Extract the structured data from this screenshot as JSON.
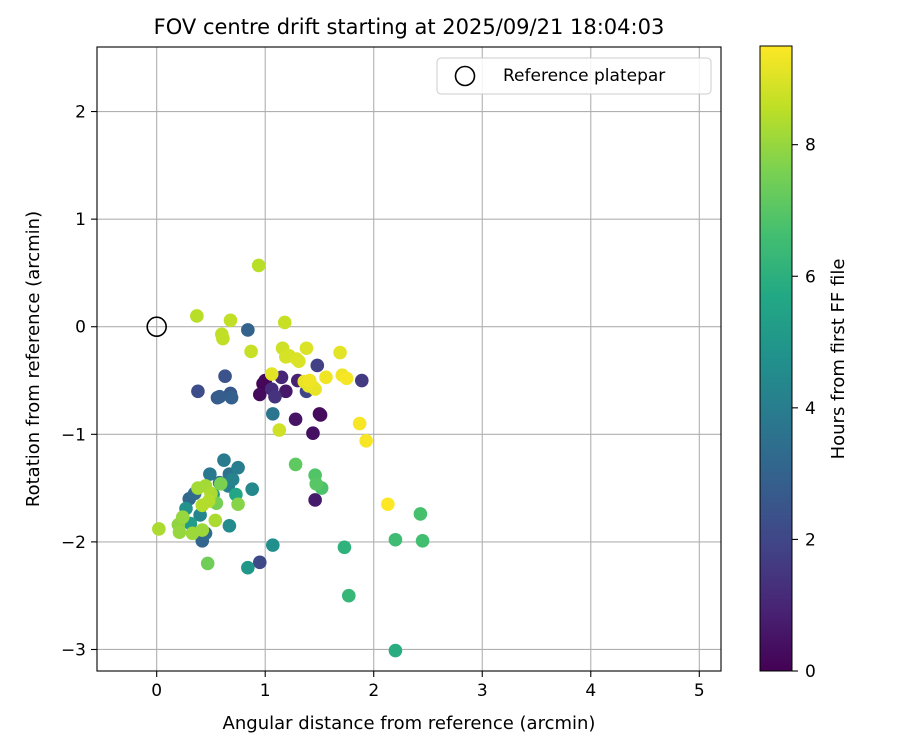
{
  "chart_data": {
    "type": "scatter",
    "title": "FOV centre drift starting at 2025/09/21 18:04:03",
    "xlabel": "Angular distance from reference (arcmin)",
    "ylabel": "Rotation from reference (arcmin)",
    "xlim": [
      -0.55,
      5.2
    ],
    "ylim": [
      -3.2,
      2.6
    ],
    "xticks": [
      0,
      1,
      2,
      3,
      4,
      5
    ],
    "yticks": [
      -3,
      -2,
      -1,
      0,
      1,
      2
    ],
    "grid": true,
    "legend": {
      "position": "top-right",
      "entries": [
        "Reference platepar"
      ]
    },
    "reference_point": {
      "name": "Reference platepar",
      "x": 0,
      "y": 0
    },
    "colorbar": {
      "label": "Hours from first FF file",
      "min": 0,
      "max": 9.5,
      "ticks": [
        0,
        2,
        4,
        6,
        8
      ],
      "colormap": "viridis"
    },
    "points": [
      {
        "x": 0.98,
        "y": -0.53,
        "c": 0.1
      },
      {
        "x": 1.0,
        "y": -0.5,
        "c": 0.2
      },
      {
        "x": 0.95,
        "y": -0.63,
        "c": 0.3
      },
      {
        "x": 1.5,
        "y": -0.81,
        "c": 0.2
      },
      {
        "x": 1.51,
        "y": -0.82,
        "c": 0.3
      },
      {
        "x": 1.44,
        "y": -0.99,
        "c": 0.4
      },
      {
        "x": 1.28,
        "y": -0.86,
        "c": 0.5
      },
      {
        "x": 1.19,
        "y": -0.6,
        "c": 0.6
      },
      {
        "x": 1.46,
        "y": -1.61,
        "c": 0.7
      },
      {
        "x": 1.3,
        "y": -0.5,
        "c": 0.9
      },
      {
        "x": 1.15,
        "y": -0.47,
        "c": 1.0
      },
      {
        "x": 1.06,
        "y": -0.58,
        "c": 1.2
      },
      {
        "x": 1.09,
        "y": -0.65,
        "c": 1.4
      },
      {
        "x": 1.89,
        "y": -0.5,
        "c": 1.6
      },
      {
        "x": 1.48,
        "y": -0.36,
        "c": 1.8
      },
      {
        "x": 1.38,
        "y": -0.6,
        "c": 2.0
      },
      {
        "x": 0.95,
        "y": -2.19,
        "c": 2.1
      },
      {
        "x": 0.38,
        "y": -0.6,
        "c": 2.2
      },
      {
        "x": 0.63,
        "y": -0.46,
        "c": 2.4
      },
      {
        "x": 0.68,
        "y": -0.62,
        "c": 2.6
      },
      {
        "x": 0.56,
        "y": -0.66,
        "c": 2.7
      },
      {
        "x": 0.58,
        "y": -0.65,
        "c": 2.8
      },
      {
        "x": 0.69,
        "y": -0.66,
        "c": 2.9
      },
      {
        "x": 0.84,
        "y": -0.03,
        "c": 3.0
      },
      {
        "x": 0.42,
        "y": -1.99,
        "c": 3.1
      },
      {
        "x": 0.3,
        "y": -1.6,
        "c": 3.2
      },
      {
        "x": 0.35,
        "y": -1.55,
        "c": 3.3
      },
      {
        "x": 0.45,
        "y": -1.92,
        "c": 3.4
      },
      {
        "x": 0.58,
        "y": -1.45,
        "c": 3.5
      },
      {
        "x": 0.67,
        "y": -1.37,
        "c": 3.6
      },
      {
        "x": 1.07,
        "y": -0.81,
        "c": 3.7
      },
      {
        "x": 0.49,
        "y": -1.37,
        "c": 3.8
      },
      {
        "x": 0.62,
        "y": -1.24,
        "c": 3.9
      },
      {
        "x": 0.75,
        "y": -1.31,
        "c": 4.0
      },
      {
        "x": 0.66,
        "y": -1.48,
        "c": 4.1
      },
      {
        "x": 0.7,
        "y": -1.42,
        "c": 4.2
      },
      {
        "x": 0.4,
        "y": -1.75,
        "c": 4.3
      },
      {
        "x": 0.88,
        "y": -1.51,
        "c": 4.4
      },
      {
        "x": 0.67,
        "y": -1.85,
        "c": 4.5
      },
      {
        "x": 1.07,
        "y": -2.03,
        "c": 4.7
      },
      {
        "x": 0.27,
        "y": -1.69,
        "c": 4.8
      },
      {
        "x": 0.84,
        "y": -2.24,
        "c": 5.0
      },
      {
        "x": 0.31,
        "y": -1.83,
        "c": 5.2
      },
      {
        "x": 0.52,
        "y": -1.56,
        "c": 5.4
      },
      {
        "x": 0.73,
        "y": -1.56,
        "c": 5.6
      },
      {
        "x": 2.2,
        "y": -3.01,
        "c": 5.9
      },
      {
        "x": 1.73,
        "y": -2.05,
        "c": 6.1
      },
      {
        "x": 1.77,
        "y": -2.5,
        "c": 6.3
      },
      {
        "x": 2.2,
        "y": -1.98,
        "c": 6.5
      },
      {
        "x": 2.45,
        "y": -1.99,
        "c": 6.6
      },
      {
        "x": 2.43,
        "y": -1.74,
        "c": 6.7
      },
      {
        "x": 1.52,
        "y": -1.5,
        "c": 6.8
      },
      {
        "x": 1.46,
        "y": -1.38,
        "c": 6.9
      },
      {
        "x": 1.47,
        "y": -1.46,
        "c": 7.0
      },
      {
        "x": 1.28,
        "y": -1.28,
        "c": 7.1
      },
      {
        "x": 0.47,
        "y": -2.2,
        "c": 7.4
      },
      {
        "x": 0.55,
        "y": -1.64,
        "c": 7.5
      },
      {
        "x": 0.59,
        "y": -1.46,
        "c": 7.6
      },
      {
        "x": 0.75,
        "y": -1.65,
        "c": 7.8
      },
      {
        "x": 0.2,
        "y": -1.84,
        "c": 7.9
      },
      {
        "x": 0.21,
        "y": -1.91,
        "c": 8.0
      },
      {
        "x": 0.24,
        "y": -1.77,
        "c": 8.0
      },
      {
        "x": 0.33,
        "y": -1.92,
        "c": 8.1
      },
      {
        "x": 0.42,
        "y": -1.89,
        "c": 8.1
      },
      {
        "x": 0.38,
        "y": -1.5,
        "c": 8.2
      },
      {
        "x": 0.45,
        "y": -1.48,
        "c": 8.2
      },
      {
        "x": 0.5,
        "y": -1.55,
        "c": 8.3
      },
      {
        "x": 0.54,
        "y": -1.8,
        "c": 8.3
      },
      {
        "x": 0.42,
        "y": -1.66,
        "c": 8.4
      },
      {
        "x": 0.48,
        "y": -1.62,
        "c": 8.4
      },
      {
        "x": 0.02,
        "y": -1.88,
        "c": 8.3
      },
      {
        "x": 0.94,
        "y": 0.57,
        "c": 8.5
      },
      {
        "x": 0.37,
        "y": 0.1,
        "c": 8.5
      },
      {
        "x": 0.68,
        "y": 0.06,
        "c": 8.6
      },
      {
        "x": 0.6,
        "y": -0.07,
        "c": 8.6
      },
      {
        "x": 0.61,
        "y": -0.11,
        "c": 8.6
      },
      {
        "x": 0.87,
        "y": -0.23,
        "c": 8.7
      },
      {
        "x": 1.18,
        "y": 0.04,
        "c": 8.7
      },
      {
        "x": 1.13,
        "y": -0.96,
        "c": 8.8
      },
      {
        "x": 1.16,
        "y": -0.2,
        "c": 8.8
      },
      {
        "x": 1.19,
        "y": -0.28,
        "c": 8.9
      },
      {
        "x": 1.22,
        "y": -0.27,
        "c": 8.9
      },
      {
        "x": 1.29,
        "y": -0.3,
        "c": 9.0
      },
      {
        "x": 1.31,
        "y": -0.32,
        "c": 9.0
      },
      {
        "x": 1.38,
        "y": -0.2,
        "c": 9.0
      },
      {
        "x": 1.06,
        "y": -0.44,
        "c": 9.1
      },
      {
        "x": 1.69,
        "y": -0.24,
        "c": 9.1
      },
      {
        "x": 1.36,
        "y": -0.51,
        "c": 9.2
      },
      {
        "x": 1.4,
        "y": -0.55,
        "c": 9.2
      },
      {
        "x": 1.44,
        "y": -0.56,
        "c": 9.2
      },
      {
        "x": 1.46,
        "y": -0.58,
        "c": 9.2
      },
      {
        "x": 1.41,
        "y": -0.5,
        "c": 9.3
      },
      {
        "x": 1.56,
        "y": -0.47,
        "c": 9.3
      },
      {
        "x": 1.71,
        "y": -0.45,
        "c": 9.3
      },
      {
        "x": 1.75,
        "y": -0.48,
        "c": 9.4
      },
      {
        "x": 1.87,
        "y": -0.9,
        "c": 9.4
      },
      {
        "x": 1.93,
        "y": -1.06,
        "c": 9.4
      },
      {
        "x": 2.13,
        "y": -1.65,
        "c": 9.5
      }
    ]
  }
}
